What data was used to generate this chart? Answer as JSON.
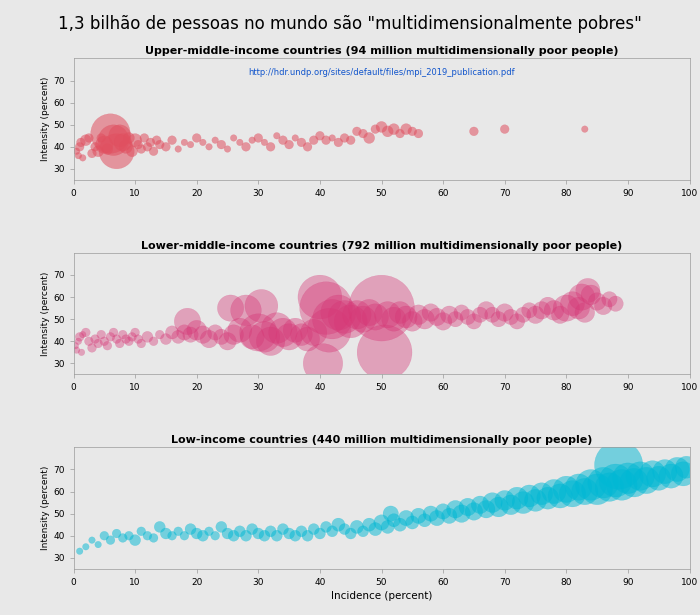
{
  "title": "1,3 bilhão de pessoas no mundo são \"multidimensionalmente pobres\"",
  "url": "http://hdr.undp.org/sites/default/files/mpi_2019_publication.pdf",
  "bg_color": "#e8e8e8",
  "plot_bg_color": "#e8e8e8",
  "title_fontsize": 12,
  "panel_title_fontsize": 8,
  "ylabel": "Intensity (percent)",
  "xlabel": "Incidence (percent)",
  "panels": [
    {
      "title": "Upper-middle-income countries (94 million multidimensionally poor people)",
      "color": "#e05060",
      "alpha": 0.55,
      "ylim": [
        25,
        80
      ],
      "yticks": [
        30,
        40,
        50,
        60,
        70
      ],
      "show_url": true,
      "points": [
        [
          0.5,
          38,
          3
        ],
        [
          0.8,
          36,
          3
        ],
        [
          1.0,
          40,
          4
        ],
        [
          1.2,
          42,
          4
        ],
        [
          1.5,
          35,
          3
        ],
        [
          2.0,
          43,
          5
        ],
        [
          2.5,
          44,
          4
        ],
        [
          3.0,
          37,
          4
        ],
        [
          3.5,
          40,
          4
        ],
        [
          4.0,
          38,
          5
        ],
        [
          4.5,
          44,
          4
        ],
        [
          5.0,
          41,
          8
        ],
        [
          5.5,
          39,
          5
        ],
        [
          6.0,
          46,
          18
        ],
        [
          6.5,
          43,
          14
        ],
        [
          7.0,
          38,
          16
        ],
        [
          7.5,
          45,
          10
        ],
        [
          8.0,
          42,
          8
        ],
        [
          8.5,
          40,
          6
        ],
        [
          9.0,
          44,
          5
        ],
        [
          9.5,
          38,
          5
        ],
        [
          10.0,
          43,
          6
        ],
        [
          10.5,
          41,
          4
        ],
        [
          11.0,
          39,
          4
        ],
        [
          11.5,
          44,
          4
        ],
        [
          12.0,
          40,
          4
        ],
        [
          12.5,
          42,
          4
        ],
        [
          13.0,
          38,
          4
        ],
        [
          13.5,
          43,
          4
        ],
        [
          14.0,
          41,
          4
        ],
        [
          15.0,
          40,
          4
        ],
        [
          16.0,
          43,
          4
        ],
        [
          17.0,
          39,
          3
        ],
        [
          18.0,
          42,
          3
        ],
        [
          19.0,
          41,
          3
        ],
        [
          20.0,
          44,
          4
        ],
        [
          21.0,
          42,
          3
        ],
        [
          22.0,
          40,
          3
        ],
        [
          23.0,
          43,
          3
        ],
        [
          24.0,
          41,
          4
        ],
        [
          25.0,
          39,
          3
        ],
        [
          26.0,
          44,
          3
        ],
        [
          27.0,
          42,
          3
        ],
        [
          28.0,
          40,
          4
        ],
        [
          29.0,
          43,
          3
        ],
        [
          30.0,
          44,
          4
        ],
        [
          31.0,
          42,
          3
        ],
        [
          32.0,
          40,
          4
        ],
        [
          33.0,
          45,
          3
        ],
        [
          34.0,
          43,
          4
        ],
        [
          35.0,
          41,
          4
        ],
        [
          36.0,
          44,
          3
        ],
        [
          37.0,
          42,
          4
        ],
        [
          38.0,
          40,
          4
        ],
        [
          39.0,
          43,
          4
        ],
        [
          40.0,
          45,
          4
        ],
        [
          41.0,
          43,
          4
        ],
        [
          42.0,
          44,
          3
        ],
        [
          43.0,
          42,
          4
        ],
        [
          44.0,
          44,
          4
        ],
        [
          45.0,
          43,
          4
        ],
        [
          46.0,
          47,
          4
        ],
        [
          47.0,
          46,
          4
        ],
        [
          48.0,
          44,
          5
        ],
        [
          49.0,
          48,
          4
        ],
        [
          50.0,
          49,
          5
        ],
        [
          51.0,
          47,
          5
        ],
        [
          52.0,
          48,
          5
        ],
        [
          53.0,
          46,
          4
        ],
        [
          54.0,
          48,
          5
        ],
        [
          55.0,
          47,
          4
        ],
        [
          56.0,
          46,
          4
        ],
        [
          65.0,
          47,
          4
        ],
        [
          70.0,
          48,
          4
        ],
        [
          83.0,
          48,
          3
        ]
      ]
    },
    {
      "title": "Lower-middle-income countries (792 million multidimensionally poor people)",
      "color": "#d63877",
      "alpha": 0.4,
      "ylim": [
        25,
        80
      ],
      "yticks": [
        30,
        40,
        50,
        60,
        70
      ],
      "show_url": false,
      "points": [
        [
          0.3,
          38,
          3
        ],
        [
          0.5,
          36,
          3
        ],
        [
          0.8,
          40,
          3
        ],
        [
          1.0,
          42,
          4
        ],
        [
          1.3,
          35,
          3
        ],
        [
          1.5,
          43,
          3
        ],
        [
          2.0,
          44,
          4
        ],
        [
          2.5,
          40,
          4
        ],
        [
          3.0,
          37,
          4
        ],
        [
          3.5,
          41,
          4
        ],
        [
          4.0,
          39,
          4
        ],
        [
          4.5,
          43,
          4
        ],
        [
          5.0,
          40,
          4
        ],
        [
          5.5,
          38,
          4
        ],
        [
          6.0,
          42,
          4
        ],
        [
          6.5,
          44,
          4
        ],
        [
          7.0,
          41,
          4
        ],
        [
          7.5,
          39,
          4
        ],
        [
          8.0,
          43,
          4
        ],
        [
          8.5,
          41,
          4
        ],
        [
          9.0,
          40,
          4
        ],
        [
          9.5,
          42,
          4
        ],
        [
          10.0,
          44,
          4
        ],
        [
          10.5,
          41,
          4
        ],
        [
          11.0,
          39,
          4
        ],
        [
          12.0,
          42,
          5
        ],
        [
          13.0,
          40,
          4
        ],
        [
          14.0,
          43,
          4
        ],
        [
          15.0,
          41,
          5
        ],
        [
          16.0,
          44,
          6
        ],
        [
          17.0,
          42,
          6
        ],
        [
          18.0,
          44,
          7
        ],
        [
          18.5,
          49,
          12
        ],
        [
          19.0,
          43,
          7
        ],
        [
          20.0,
          45,
          9
        ],
        [
          21.0,
          43,
          8
        ],
        [
          22.0,
          41,
          8
        ],
        [
          23.0,
          44,
          7
        ],
        [
          24.0,
          42,
          7
        ],
        [
          25.0,
          40,
          8
        ],
        [
          25.5,
          55,
          12
        ],
        [
          26.0,
          43,
          9
        ],
        [
          27.0,
          45,
          11
        ],
        [
          28.0,
          54,
          14
        ],
        [
          29.0,
          42,
          11
        ],
        [
          30.0,
          44,
          17
        ],
        [
          30.5,
          56,
          15
        ],
        [
          31.0,
          42,
          14
        ],
        [
          32.0,
          40,
          13
        ],
        [
          33.0,
          46,
          14
        ],
        [
          34.0,
          44,
          13
        ],
        [
          35.0,
          42,
          12
        ],
        [
          36.0,
          45,
          11
        ],
        [
          37.0,
          43,
          10
        ],
        [
          38.0,
          41,
          11
        ],
        [
          39.0,
          44,
          12
        ],
        [
          40.0,
          60,
          20
        ],
        [
          40.5,
          30,
          18
        ],
        [
          41.0,
          55,
          24
        ],
        [
          41.5,
          45,
          20
        ],
        [
          42.0,
          50,
          18
        ],
        [
          43.0,
          53,
          16
        ],
        [
          44.0,
          51,
          15
        ],
        [
          45.0,
          49,
          15
        ],
        [
          46.0,
          52,
          13
        ],
        [
          47.0,
          50,
          12
        ],
        [
          48.0,
          53,
          12
        ],
        [
          49.0,
          51,
          12
        ],
        [
          50.0,
          55,
          30
        ],
        [
          50.5,
          35,
          25
        ],
        [
          51.0,
          52,
          12
        ],
        [
          52.0,
          50,
          11
        ],
        [
          53.0,
          53,
          10
        ],
        [
          54.0,
          51,
          10
        ],
        [
          55.0,
          49,
          9
        ],
        [
          56.0,
          52,
          9
        ],
        [
          57.0,
          50,
          9
        ],
        [
          58.0,
          53,
          8
        ],
        [
          59.0,
          51,
          8
        ],
        [
          60.0,
          49,
          8
        ],
        [
          61.0,
          52,
          8
        ],
        [
          62.0,
          50,
          7
        ],
        [
          63.0,
          53,
          7
        ],
        [
          64.0,
          51,
          7
        ],
        [
          65.0,
          49,
          7
        ],
        [
          66.0,
          52,
          7
        ],
        [
          67.0,
          54,
          8
        ],
        [
          68.0,
          52,
          7
        ],
        [
          69.0,
          50,
          7
        ],
        [
          70.0,
          53,
          8
        ],
        [
          71.0,
          51,
          7
        ],
        [
          72.0,
          49,
          7
        ],
        [
          73.0,
          52,
          7
        ],
        [
          74.0,
          54,
          7
        ],
        [
          75.0,
          52,
          8
        ],
        [
          76.0,
          54,
          8
        ],
        [
          77.0,
          56,
          8
        ],
        [
          78.0,
          54,
          9
        ],
        [
          79.0,
          52,
          8
        ],
        [
          80.0,
          55,
          12
        ],
        [
          81.0,
          57,
          11
        ],
        [
          82.0,
          55,
          10
        ],
        [
          82.5,
          60,
          12
        ],
        [
          83.0,
          53,
          9
        ],
        [
          83.5,
          63,
          11
        ],
        [
          84.0,
          61,
          9
        ],
        [
          85.0,
          58,
          8
        ],
        [
          86.0,
          56,
          8
        ],
        [
          87.0,
          59,
          7
        ],
        [
          88.0,
          57,
          7
        ]
      ]
    },
    {
      "title": "Low-income countries (440 million multidimensionally poor people)",
      "color": "#00b8d4",
      "alpha": 0.5,
      "ylim": [
        25,
        80
      ],
      "yticks": [
        30,
        40,
        50,
        60,
        70
      ],
      "show_url": false,
      "points": [
        [
          1.0,
          33,
          3
        ],
        [
          2.0,
          35,
          3
        ],
        [
          3.0,
          38,
          3
        ],
        [
          4.0,
          36,
          3
        ],
        [
          5.0,
          40,
          4
        ],
        [
          6.0,
          38,
          4
        ],
        [
          7.0,
          41,
          4
        ],
        [
          8.0,
          39,
          4
        ],
        [
          9.0,
          40,
          4
        ],
        [
          10.0,
          38,
          5
        ],
        [
          11.0,
          42,
          4
        ],
        [
          12.0,
          40,
          4
        ],
        [
          13.0,
          39,
          4
        ],
        [
          14.0,
          44,
          5
        ],
        [
          15.0,
          41,
          5
        ],
        [
          16.0,
          40,
          4
        ],
        [
          17.0,
          42,
          4
        ],
        [
          18.0,
          40,
          4
        ],
        [
          19.0,
          43,
          5
        ],
        [
          20.0,
          41,
          5
        ],
        [
          21.0,
          40,
          5
        ],
        [
          22.0,
          42,
          4
        ],
        [
          23.0,
          40,
          4
        ],
        [
          24.0,
          44,
          5
        ],
        [
          25.0,
          41,
          5
        ],
        [
          26.0,
          40,
          5
        ],
        [
          27.0,
          42,
          5
        ],
        [
          28.0,
          40,
          5
        ],
        [
          29.0,
          43,
          5
        ],
        [
          30.0,
          41,
          5
        ],
        [
          31.0,
          40,
          5
        ],
        [
          32.0,
          42,
          5
        ],
        [
          33.0,
          40,
          5
        ],
        [
          34.0,
          43,
          5
        ],
        [
          35.0,
          41,
          5
        ],
        [
          36.0,
          40,
          5
        ],
        [
          37.0,
          42,
          5
        ],
        [
          38.0,
          40,
          5
        ],
        [
          39.0,
          43,
          5
        ],
        [
          40.0,
          41,
          5
        ],
        [
          41.0,
          44,
          5
        ],
        [
          42.0,
          42,
          5
        ],
        [
          43.0,
          45,
          6
        ],
        [
          44.0,
          43,
          5
        ],
        [
          45.0,
          41,
          5
        ],
        [
          46.0,
          44,
          6
        ],
        [
          47.0,
          42,
          5
        ],
        [
          48.0,
          45,
          6
        ],
        [
          49.0,
          43,
          6
        ],
        [
          50.0,
          46,
          7
        ],
        [
          51.0,
          44,
          6
        ],
        [
          51.5,
          50,
          7
        ],
        [
          52.0,
          47,
          6
        ],
        [
          53.0,
          45,
          6
        ],
        [
          54.0,
          48,
          7
        ],
        [
          55.0,
          46,
          6
        ],
        [
          56.0,
          49,
          7
        ],
        [
          57.0,
          47,
          6
        ],
        [
          58.0,
          50,
          7
        ],
        [
          59.0,
          48,
          7
        ],
        [
          60.0,
          51,
          7
        ],
        [
          61.0,
          49,
          7
        ],
        [
          62.0,
          52,
          8
        ],
        [
          63.0,
          50,
          8
        ],
        [
          64.0,
          53,
          8
        ],
        [
          65.0,
          51,
          8
        ],
        [
          66.0,
          54,
          8
        ],
        [
          67.0,
          52,
          8
        ],
        [
          68.0,
          55,
          9
        ],
        [
          69.0,
          53,
          9
        ],
        [
          70.0,
          56,
          9
        ],
        [
          71.0,
          54,
          9
        ],
        [
          72.0,
          57,
          10
        ],
        [
          73.0,
          55,
          10
        ],
        [
          74.0,
          58,
          10
        ],
        [
          75.0,
          56,
          10
        ],
        [
          76.0,
          59,
          10
        ],
        [
          77.0,
          57,
          10
        ],
        [
          78.0,
          60,
          11
        ],
        [
          79.0,
          58,
          11
        ],
        [
          80.0,
          61,
          12
        ],
        [
          81.0,
          59,
          12
        ],
        [
          82.0,
          62,
          12
        ],
        [
          83.0,
          60,
          12
        ],
        [
          84.0,
          63,
          14
        ],
        [
          85.0,
          61,
          14
        ],
        [
          86.0,
          64,
          14
        ],
        [
          87.0,
          62,
          13
        ],
        [
          88.0,
          65,
          15
        ],
        [
          88.5,
          72,
          22
        ],
        [
          89.0,
          63,
          14
        ],
        [
          90.0,
          66,
          14
        ],
        [
          91.0,
          64,
          13
        ],
        [
          92.0,
          67,
          13
        ],
        [
          93.0,
          65,
          12
        ],
        [
          94.0,
          68,
          12
        ],
        [
          95.0,
          66,
          11
        ],
        [
          96.0,
          69,
          11
        ],
        [
          97.0,
          67,
          11
        ],
        [
          98.0,
          70,
          11
        ],
        [
          99.0,
          68,
          11
        ],
        [
          99.5,
          71,
          10
        ]
      ]
    }
  ]
}
